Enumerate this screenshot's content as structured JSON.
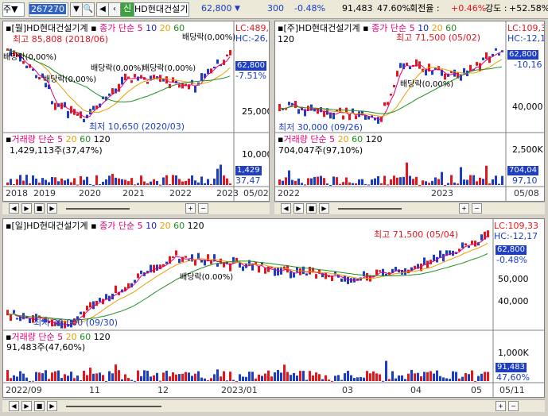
{
  "toolbar": {
    "market": "주",
    "code": "267270",
    "name": "HD현대건설기",
    "price": "62,800",
    "change": "300",
    "pct": "-0.48%",
    "volume": "91,483",
    "volume_ratio": "47.60%",
    "turnover_label": "회전율 :",
    "turnover": "+0.46%",
    "strength_label": "강도 :",
    "strength": "+52.58%",
    "sin": "신"
  },
  "legend": {
    "ma_title": "종가 단순",
    "periods": [
      "5",
      "10",
      "20",
      "60",
      "120"
    ],
    "vol_title": "거래량 단순",
    "vol_periods": [
      "5",
      "20",
      "60",
      "120"
    ]
  },
  "monthly": {
    "title": "[월]HD현대건설기계",
    "high": "최고 85,808 (2018/06)",
    "low": "최저 10,650 (2020/03)",
    "lc": "LC:489,6",
    "hc": "HC:-26,8",
    "price": "62,800",
    "pct": "-7.51%",
    "axis": [
      "25,000"
    ],
    "annotations": [
      "배당락(0,00%)",
      "배당락(0,00%)",
      "배당락(0,00%)",
      "배당락(0,00%)",
      "배당락(0,00%)",
      "배당락(0,00%)",
      "배당락(0,00%)"
    ],
    "vol_text": "1,429,113주(37,47%)",
    "vol_axis": "10,000",
    "vol_box": "1,429",
    "vol_pct": "37,47",
    "xlabels": [
      "2018",
      "2019",
      "2020",
      "2021",
      "2022",
      "2023",
      "05/02"
    ]
  },
  "weekly": {
    "title": "[주]HD현대건설기계",
    "axis_top": "120",
    "high": "최고 71,500 (05/02)",
    "low": "최저 30,000 (09/26)",
    "lc": "LC:109,3",
    "hc": "HC:-12,1",
    "price": "62,800",
    "pct": "-10,16",
    "axis": [
      "40,000"
    ],
    "annotation": "배당락(0,00%)",
    "vol_text": "704,047주(97,10%)",
    "vol_axis": "2,500K",
    "vol_box": "704,04",
    "vol_pct": "97,10",
    "xlabels": [
      "2022",
      "2023",
      "05/08"
    ]
  },
  "daily": {
    "title": "[일]HD현대건설기계",
    "high": "최고 71,500 (05/04)",
    "low": "최저 30,000 (09/30)",
    "lc": "LC:109,33",
    "hc": "HC:-12,17",
    "price": "62,800",
    "pct": "-0.48%",
    "axis": [
      "50,000",
      "40,000"
    ],
    "annotation": "배당락(0.00%)",
    "vol_text": "91,483주(47,60%)",
    "vol_axis": "1,000K",
    "vol_box": "91,483",
    "vol_pct": "47,60%",
    "xlabels": [
      "2022/09",
      "11",
      "12",
      "2023/01",
      "03",
      "04",
      "05",
      "05/11"
    ]
  },
  "controls": [
    "◀",
    "▶",
    "■",
    "▶"
  ],
  "colors": {
    "up": "#e8141c",
    "down": "#1a3cc8",
    "ma5": "#e0007a",
    "ma10": "#2020c0",
    "ma20": "#e8a000",
    "ma60": "#1f8f1f",
    "ma120": "#808080"
  }
}
